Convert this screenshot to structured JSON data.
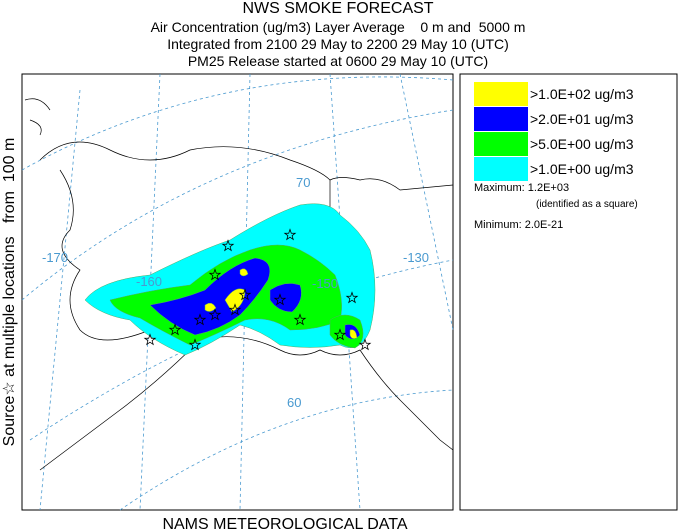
{
  "header": {
    "title": "NWS SMOKE FORECAST",
    "lines": [
      "Air Concentration (ug/m3) Layer Average    0 m and  5000 m",
      "Integrated from 2100 29 May to 2200 29 May 10 (UTC)",
      "PM25 Release started at 0600 29 May 10 (UTC)"
    ]
  },
  "side_label": "Source☆ at multiple locations   from  100 m",
  "footer": "NAMS METEOROLOGICAL DATA",
  "map": {
    "labels": [
      "-170",
      "-160",
      "-150",
      "-130",
      "70",
      "60"
    ]
  },
  "legend": {
    "items": [
      {
        "label": ">1.0E+02 ug/m3",
        "color": "#ffff00"
      },
      {
        "label": ">2.0E+01 ug/m3",
        "color": "#0000ff"
      },
      {
        "label": ">5.0E+00 ug/m3",
        "color": "#00ff00"
      },
      {
        "label": ">1.0E+00 ug/m3",
        "color": "#00ffff"
      }
    ],
    "maximum": "Maximum: 1.2E+03",
    "maximum_note": "(identified as a square)",
    "minimum": "Minimum: 2.0E-21"
  }
}
